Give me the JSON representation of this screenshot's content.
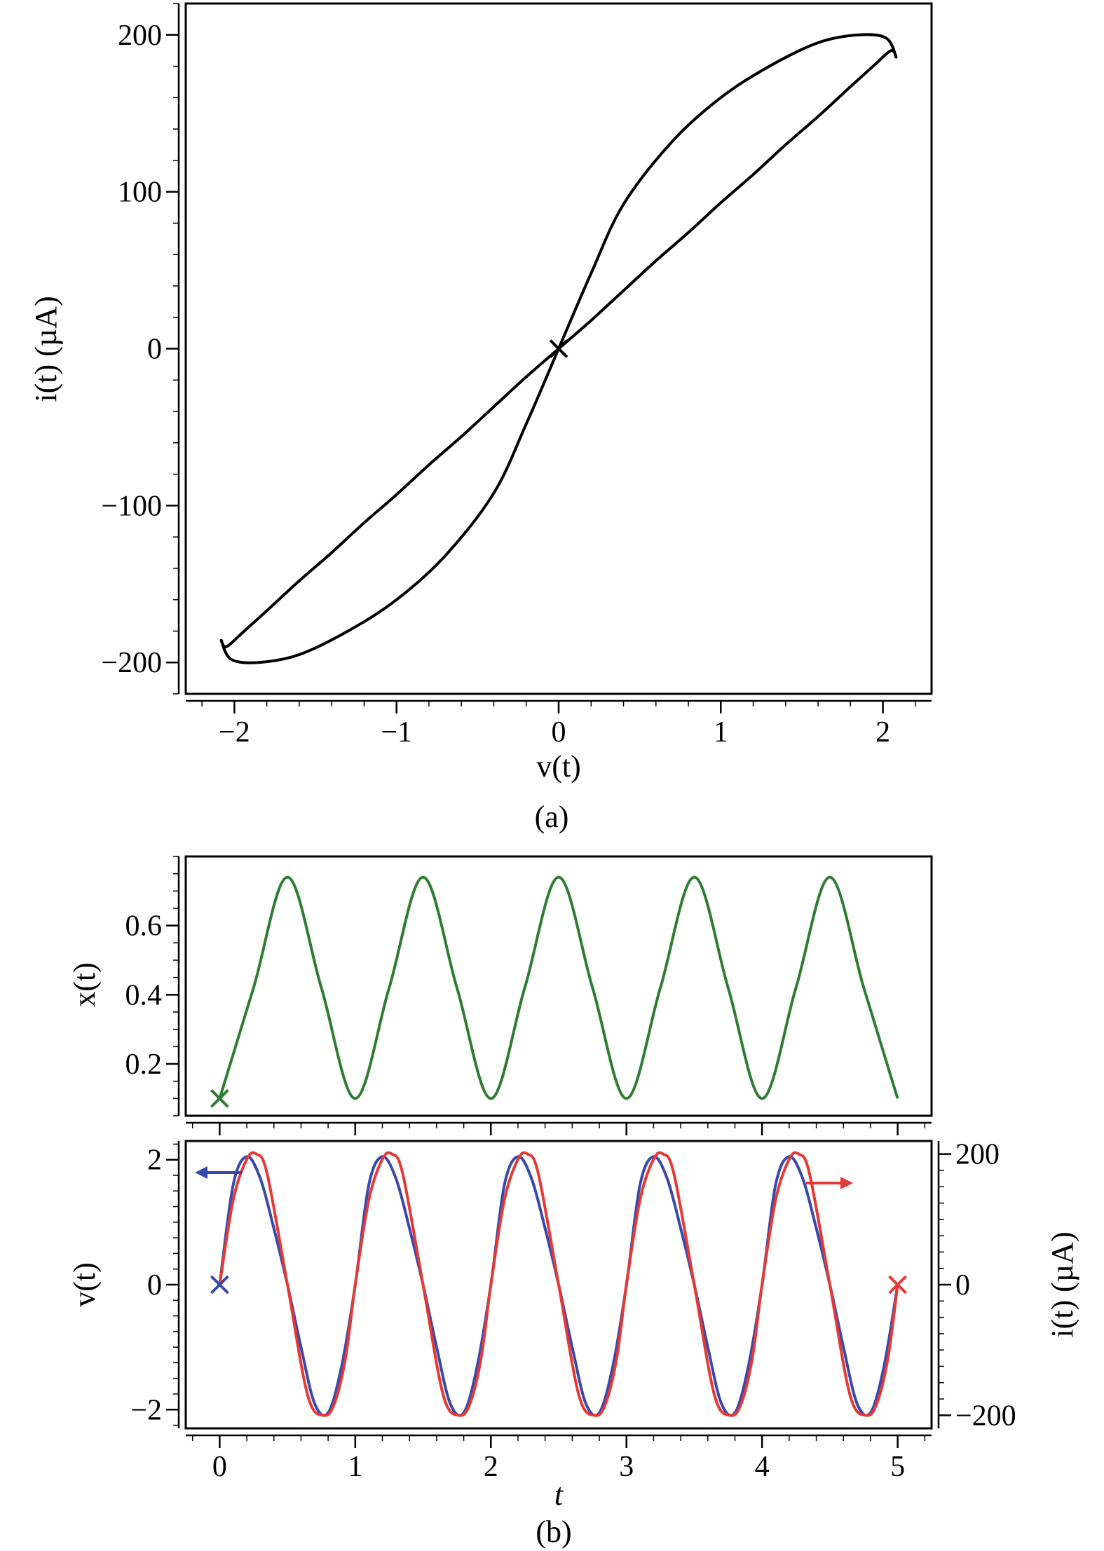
{
  "chart_data": [
    {
      "type": "line",
      "panel": "(a)",
      "xlabel": "v(t)",
      "ylabel": "i(t) (µA)",
      "xlim": [
        -2.3,
        2.3
      ],
      "ylim": [
        -220,
        220
      ],
      "xticks": [
        "−2",
        "−1",
        "0",
        "1",
        "2"
      ],
      "yticks": [
        "−200",
        "−100",
        "0",
        "100",
        "200"
      ],
      "grid": false,
      "caption": "(a)",
      "series": [
        {
          "color": "#000000",
          "x": [
            0,
            0.2,
            0.4,
            0.6,
            0.8,
            1.0,
            1.2,
            1.4,
            1.6,
            1.8,
            1.95,
            2.05,
            2.08,
            2.02,
            1.85,
            1.6,
            1.3,
            1.0,
            0.7,
            0.4,
            0.2,
            0,
            -0.2,
            -0.4,
            -0.7,
            -1.0,
            -1.3,
            -1.6,
            -1.85,
            -2.02,
            -2.08,
            -2.05,
            -1.95,
            -1.8,
            -1.6,
            -1.4,
            -1.2,
            -1.0,
            -0.8,
            -0.6,
            -0.4,
            -0.2,
            0
          ],
          "y": [
            0,
            18,
            37,
            56,
            74,
            93,
            111,
            130,
            148,
            167,
            181,
            190,
            186,
            198,
            200,
            195,
            180,
            160,
            132,
            92,
            48,
            0,
            -48,
            -92,
            -132,
            -160,
            -180,
            -195,
            -200,
            -198,
            -186,
            -190,
            -181,
            -167,
            -148,
            -130,
            -111,
            -93,
            -74,
            -56,
            -37,
            -18,
            0
          ]
        }
      ],
      "markers": [
        {
          "x": 0,
          "y": 0,
          "symbol": "×",
          "color": "#000000"
        }
      ]
    },
    {
      "type": "line",
      "panel": "(b) top",
      "ylabel": "x(t)",
      "xlim": [
        -0.25,
        5.25
      ],
      "ylim": [
        0.05,
        0.8
      ],
      "yticks": [
        "0.2",
        "0.4",
        "0.6"
      ],
      "grid": false,
      "series": [
        {
          "color": "#2e7d32",
          "x": [
            0,
            0.25,
            0.5,
            0.75,
            1.0,
            1.25,
            1.5,
            1.75,
            2.0,
            2.25,
            2.5,
            2.75,
            3.0,
            3.25,
            3.5,
            3.75,
            4.0,
            4.25,
            4.5,
            4.75,
            5.0
          ],
          "y": [
            0.1,
            0.42,
            0.74,
            0.42,
            0.1,
            0.42,
            0.74,
            0.42,
            0.1,
            0.42,
            0.74,
            0.42,
            0.1,
            0.42,
            0.74,
            0.42,
            0.1,
            0.42,
            0.74,
            0.42,
            0.1
          ]
        }
      ],
      "markers": [
        {
          "x": 0,
          "y": 0.1,
          "symbol": "×",
          "color": "#2e7d32"
        }
      ]
    },
    {
      "type": "line",
      "panel": "(b) bottom",
      "xlabel": "t",
      "ylabel": "v(t)",
      "y2label": "i(t) (µA)",
      "xlim": [
        -0.25,
        5.25
      ],
      "ylim": [
        -2.3,
        2.3
      ],
      "y2lim": [
        -220,
        220
      ],
      "xticks": [
        "0",
        "1",
        "2",
        "3",
        "4",
        "5"
      ],
      "yticks": [
        "−2",
        "0",
        "2"
      ],
      "y2ticks": [
        "−200",
        "0",
        "200"
      ],
      "grid": false,
      "caption": "(b)",
      "series": [
        {
          "axis": "left",
          "color": "#3949ab",
          "x": [
            0,
            0.1,
            0.2,
            0.3,
            0.4,
            0.5,
            0.6,
            0.7,
            0.8,
            0.9,
            1.0
          ],
          "y": [
            0,
            1.6,
            2.05,
            1.7,
            0.9,
            0,
            -1.0,
            -1.9,
            -2.05,
            -1.3,
            0
          ],
          "periodic": 1
        },
        {
          "axis": "right",
          "color": "#e53935",
          "x": [
            0,
            0.1,
            0.2,
            0.27,
            0.35,
            0.5,
            0.65,
            0.77,
            0.85,
            0.93,
            1.0
          ],
          "y": [
            0,
            130,
            192,
            200,
            170,
            0,
            -170,
            -200,
            -180,
            -110,
            0
          ],
          "periodic": 1
        }
      ],
      "markers": [
        {
          "x": 0,
          "y": 0,
          "symbol": "×",
          "color": "#3949ab"
        },
        {
          "x": 5,
          "y": 0,
          "symbol": "×",
          "color": "#e53935"
        }
      ]
    }
  ]
}
